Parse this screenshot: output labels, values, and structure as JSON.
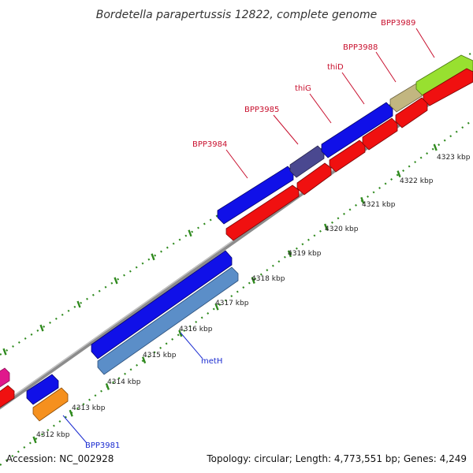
{
  "title": "Bordetella parapertussis 12822, complete genome",
  "footer": {
    "accession": "Accession: NC_002928",
    "topology": "Topology: circular; Length: 4,773,551 bp; Genes: 4,249"
  },
  "ticks": {
    "labels": [
      "4312 kbp",
      "4313 kbp",
      "4314 kbp",
      "4315 kbp",
      "4316 kbp",
      "4317 kbp",
      "4318 kbp",
      "4319 kbp",
      "4320 kbp",
      "4321 kbp",
      "4322 kbp",
      "4323 kbp"
    ]
  },
  "genes": {
    "bpp3981": "BPP3981",
    "meth": "metH",
    "bpp3984": "BPP3984",
    "bpp3985": "BPP3985",
    "thig": "thiG",
    "thid": "thiD",
    "bpp3988": "BPP3988",
    "bpp3989": "BPP3989"
  },
  "colors": {
    "background": "#ffffff",
    "backbone": "#8c8c8c",
    "forward_cds": "#1010e8",
    "reverse_cds": "#f01010",
    "tick": "#2f8a1e",
    "label_red": "#c8102e",
    "label_blue": "#1a2bd0",
    "meth_fill": "#5b8ec8",
    "bpp3981_fill": "#f5901e",
    "bpp3985_fill": "#4a4890",
    "bpp3988_fill": "#c2b680",
    "bpp3989_fill": "#98e030",
    "magenta_fill": "#e0188c"
  }
}
